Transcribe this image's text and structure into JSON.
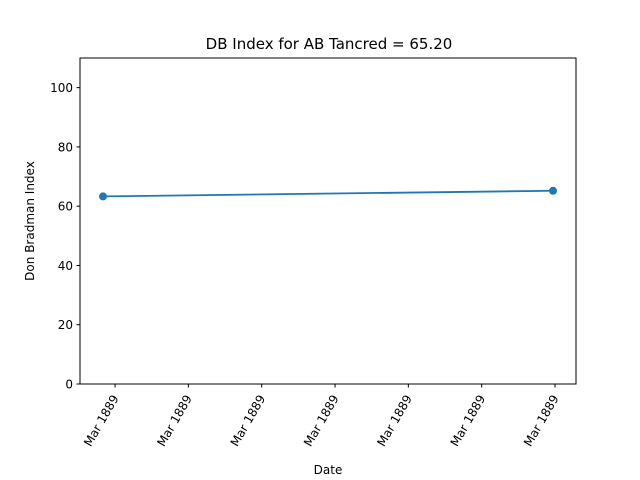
{
  "chart_data": {
    "type": "line",
    "title": "DB Index for AB Tancred = 65.20",
    "xlabel": "Date",
    "ylabel": "Don Bradman Index",
    "ylim": [
      0,
      110
    ],
    "y_ticks": [
      0,
      20,
      40,
      60,
      80,
      100
    ],
    "x_tick_labels": [
      "Mar 1889",
      "Mar 1889",
      "Mar 1889",
      "Mar 1889",
      "Mar 1889",
      "Mar 1889",
      "Mar 1889"
    ],
    "x_tick_fractions": [
      0.0707,
      0.2185,
      0.3663,
      0.5142,
      0.662,
      0.8098,
      0.9577
    ],
    "series": [
      {
        "color": "#1f77b4",
        "x_fractions": [
          0.0,
          1.0
        ],
        "values": [
          63.3,
          65.2
        ]
      }
    ],
    "grid": false,
    "legend": "none"
  }
}
